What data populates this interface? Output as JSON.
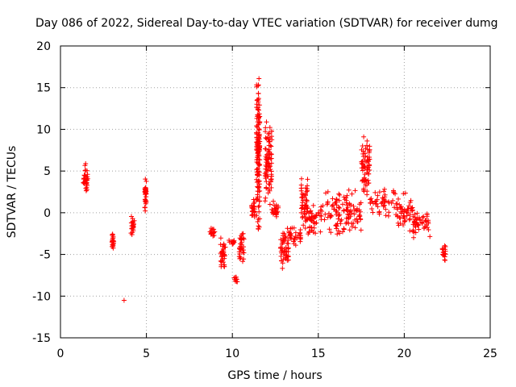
{
  "chart_data": {
    "type": "scatter",
    "title": "Day 086 of 2022, Sidereal Day-to-day VTEC variation (SDTVAR) for receiver dumg",
    "xlabel": "GPS time / hours",
    "ylabel": "SDTVAR / TECUs",
    "xlim": [
      0,
      25
    ],
    "ylim": [
      -15,
      20
    ],
    "xticks": [
      "0",
      "5",
      "10",
      "15",
      "20",
      "25"
    ],
    "yticks": [
      "-15",
      "-10",
      "-5",
      "0",
      "5",
      "10",
      "15",
      "20"
    ],
    "grid": true,
    "marker": "+",
    "color": "#ff0000",
    "series": [
      {
        "name": "SDTVAR",
        "segments": [
          {
            "x": [
              1.3,
              1.6
            ],
            "y": [
              2.0,
              6.2
            ]
          },
          {
            "x": [
              3.0,
              3.1
            ],
            "y": [
              -4.8,
              -2.4
            ]
          },
          {
            "x": [
              3.7,
              3.7
            ],
            "y": [
              -10.5,
              -10.5
            ]
          },
          {
            "x": [
              4.1,
              4.3
            ],
            "y": [
              -3.0,
              -0.3
            ]
          },
          {
            "x": [
              4.9,
              5.0
            ],
            "y": [
              0.2,
              4.3
            ]
          },
          {
            "x": [
              8.7,
              9.0
            ],
            "y": [
              -3.2,
              -1.8
            ]
          },
          {
            "x": [
              9.3,
              9.6
            ],
            "y": [
              -7.0,
              -3.0
            ]
          },
          {
            "x": [
              9.8,
              10.1
            ],
            "y": [
              -4.0,
              -3.0
            ]
          },
          {
            "x": [
              10.1,
              10.3
            ],
            "y": [
              -8.5,
              -7.5
            ]
          },
          {
            "x": [
              10.4,
              10.7
            ],
            "y": [
              -6.0,
              -2.0
            ]
          },
          {
            "x": [
              11.1,
              11.3
            ],
            "y": [
              -1.0,
              2.0
            ]
          },
          {
            "x": [
              11.4,
              11.6
            ],
            "y": [
              -2.5,
              17.5
            ]
          },
          {
            "x": [
              11.9,
              12.3
            ],
            "y": [
              1.0,
              11.5
            ]
          },
          {
            "x": [
              12.3,
              12.7
            ],
            "y": [
              -1.0,
              1.5
            ]
          },
          {
            "x": [
              12.8,
              13.3
            ],
            "y": [
              -7.2,
              -1.5
            ]
          },
          {
            "x": [
              13.3,
              14.0
            ],
            "y": [
              -4.0,
              -1.5
            ]
          },
          {
            "x": [
              14.0,
              14.4
            ],
            "y": [
              -2.0,
              4.5
            ]
          },
          {
            "x": [
              14.4,
              14.9
            ],
            "y": [
              -3.0,
              1.0
            ]
          },
          {
            "x": [
              15.0,
              16.5
            ],
            "y": [
              -3.0,
              3.0
            ]
          },
          {
            "x": [
              16.5,
              17.5
            ],
            "y": [
              -2.5,
              3.0
            ]
          },
          {
            "x": [
              17.5,
              18.0
            ],
            "y": [
              1.5,
              9.5
            ]
          },
          {
            "x": [
              18.0,
              19.5
            ],
            "y": [
              -0.5,
              3.0
            ]
          },
          {
            "x": [
              19.5,
              20.5
            ],
            "y": [
              -2.5,
              2.5
            ]
          },
          {
            "x": [
              20.5,
              21.5
            ],
            "y": [
              -3.5,
              1.0
            ]
          },
          {
            "x": [
              22.2,
              22.4
            ],
            "y": [
              -5.8,
              -3.8
            ]
          }
        ]
      }
    ]
  }
}
